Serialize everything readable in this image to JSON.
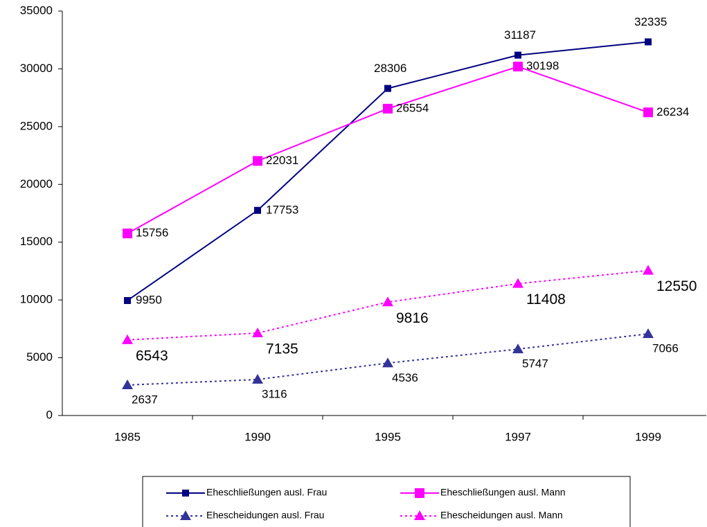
{
  "chart_data": {
    "type": "line",
    "categories": [
      "1985",
      "1990",
      "1995",
      "1997",
      "1999"
    ],
    "series": [
      {
        "name": "Eheschließungen ausl. Frau",
        "color": "#000080",
        "marker": "square",
        "dash": "solid",
        "values": [
          9950,
          17753,
          28306,
          31187,
          32335
        ]
      },
      {
        "name": "Eheschließungen ausl. Mann",
        "color": "#ff00ff",
        "marker": "square",
        "dash": "solid",
        "values": [
          15756,
          22031,
          26554,
          30198,
          26234
        ]
      },
      {
        "name": "Ehescheidungen ausl. Frau",
        "color": "#333399",
        "marker": "triangle",
        "dash": "dotted",
        "values": [
          2637,
          3116,
          4536,
          5747,
          7066
        ]
      },
      {
        "name": "Ehescheidungen ausl. Mann",
        "color": "#ff00ff",
        "marker": "triangle",
        "dash": "dotted",
        "values": [
          6543,
          7135,
          9816,
          11408,
          12550
        ]
      }
    ],
    "ylim": [
      0,
      35000
    ],
    "yticks": [
      0,
      5000,
      10000,
      15000,
      20000,
      25000,
      30000,
      35000
    ],
    "legend": "bottom"
  }
}
